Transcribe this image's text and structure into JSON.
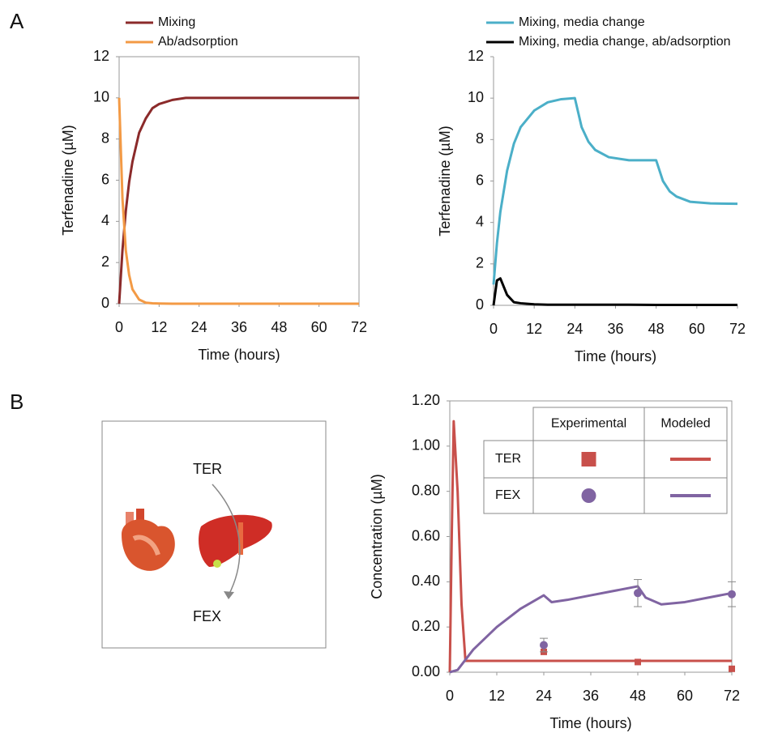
{
  "panels": [
    "A",
    "B"
  ],
  "diagram": {
    "labels": [
      "TER",
      "FEX"
    ]
  },
  "chart_data": [
    {
      "type": "line",
      "x_label": "Time (hours)",
      "y_label": "Terfenadine (µM)",
      "x": [
        0,
        1,
        2,
        3,
        4,
        6,
        8,
        10,
        12,
        16,
        20,
        24,
        36,
        48,
        60,
        72
      ],
      "series": [
        {
          "name": "Mixing",
          "color": "#8b2a2a",
          "values": [
            0,
            2.6,
            4.5,
            5.9,
            6.9,
            8.3,
            9.0,
            9.5,
            9.7,
            9.9,
            10,
            10,
            10,
            10,
            10,
            10
          ]
        },
        {
          "name": "Ab/adsorption",
          "color": "#f39a45",
          "values": [
            10,
            5.1,
            2.6,
            1.4,
            0.7,
            0.2,
            0.05,
            0.02,
            0.01,
            0,
            0,
            0,
            0,
            0,
            0,
            0
          ]
        }
      ],
      "xlim": [
        0,
        72
      ],
      "xticks": [
        0,
        12,
        24,
        36,
        48,
        60,
        72
      ],
      "ylim": [
        0,
        12
      ],
      "yticks": [
        0,
        2,
        4,
        6,
        8,
        10,
        12
      ]
    },
    {
      "type": "line",
      "x_label": "Time (hours)",
      "y_label": "Terfenadine (µM)",
      "x": [
        0,
        1,
        2,
        4,
        6,
        8,
        12,
        16,
        20,
        24,
        26,
        28,
        30,
        34,
        40,
        48,
        50,
        52,
        54,
        58,
        64,
        72
      ],
      "series": [
        {
          "name": "Mixing, media change",
          "color": "#4bafc8",
          "values": [
            1,
            3,
            4.5,
            6.5,
            7.8,
            8.6,
            9.4,
            9.8,
            9.95,
            10,
            8.6,
            7.9,
            7.5,
            7.15,
            7.0,
            7.0,
            6.0,
            5.5,
            5.25,
            5.0,
            4.92,
            4.9
          ]
        },
        {
          "name": "Mixing, media change, ab/adsorption",
          "color": "#000000",
          "values": [
            0,
            1.2,
            1.3,
            0.5,
            0.15,
            0.1,
            0.05,
            0.03,
            0.03,
            0.03,
            0.03,
            0.03,
            0.03,
            0.03,
            0.03,
            0.02,
            0.02,
            0.02,
            0.02,
            0.02,
            0.02,
            0.02
          ]
        }
      ],
      "xlim": [
        0,
        72
      ],
      "xticks": [
        0,
        12,
        24,
        36,
        48,
        60,
        72
      ],
      "ylim": [
        0,
        12
      ],
      "yticks": [
        0,
        2,
        4,
        6,
        8,
        10,
        12
      ]
    },
    {
      "type": "line",
      "x_label": "Time (hours)",
      "y_label": "Concentration (µM)",
      "legend_columns": [
        "Experimental",
        "Modeled"
      ],
      "series": [
        {
          "name": "TER",
          "color": "#c8504b",
          "marker": "square",
          "x": [
            0,
            0.5,
            1,
            2,
            3,
            4,
            12,
            24,
            36,
            48,
            60,
            72
          ],
          "values": [
            0,
            0.6,
            1.11,
            0.8,
            0.3,
            0.05,
            0.05,
            0.05,
            0.05,
            0.05,
            0.05,
            0.05
          ],
          "experimental": {
            "x": [
              24,
              48,
              72
            ],
            "values": [
              0.09,
              0.045,
              0.015
            ]
          }
        },
        {
          "name": "FEX",
          "color": "#8064a2",
          "marker": "circle",
          "x": [
            0,
            2,
            6,
            12,
            18,
            24,
            26,
            30,
            36,
            42,
            48,
            50,
            54,
            60,
            66,
            72
          ],
          "values": [
            0,
            0.01,
            0.1,
            0.2,
            0.28,
            0.34,
            0.31,
            0.32,
            0.34,
            0.36,
            0.38,
            0.33,
            0.3,
            0.31,
            0.33,
            0.35
          ],
          "experimental": {
            "x": [
              24,
              48,
              72
            ],
            "values": [
              0.12,
              0.35,
              0.345
            ],
            "errors": [
              0.03,
              0.06,
              0.055
            ]
          }
        }
      ],
      "xlim": [
        0,
        72
      ],
      "xticks": [
        0,
        12,
        24,
        36,
        48,
        60,
        72
      ],
      "ylim": [
        0,
        1.2
      ],
      "yticks": [
        {
          "value": 0,
          "label": "0.00"
        },
        {
          "value": 0.2,
          "label": "0.20"
        },
        {
          "value": 0.4,
          "label": "0.40"
        },
        {
          "value": 0.6,
          "label": "0.60"
        },
        {
          "value": 0.8,
          "label": "0.80"
        },
        {
          "value": 1.0,
          "label": "1.00"
        },
        {
          "value": 1.2,
          "label": "1.20"
        }
      ]
    }
  ]
}
